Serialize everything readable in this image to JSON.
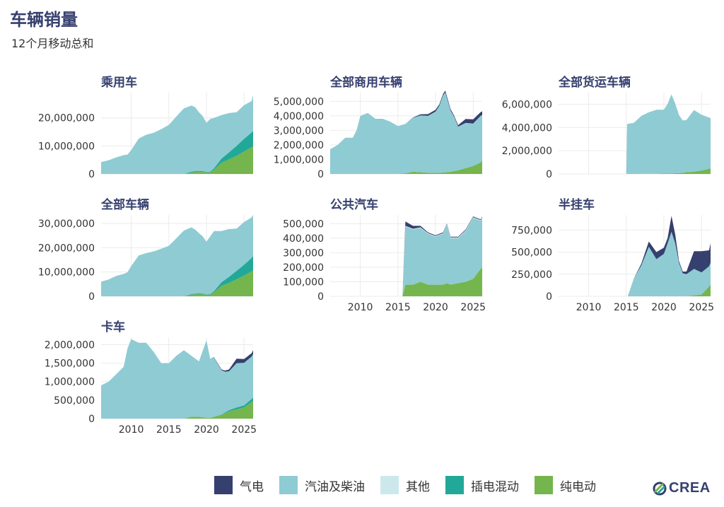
{
  "title": "车辆销量",
  "subtitle": "12个月移动总和",
  "legend": [
    {
      "name": "气电",
      "color": "#35406e"
    },
    {
      "name": "汽油及柴油",
      "color": "#8fcbd3"
    },
    {
      "name": "其他",
      "color": "#cde8ec"
    },
    {
      "name": "插电混动",
      "color": "#22a899"
    },
    {
      "name": "纯电动",
      "color": "#75b54d"
    }
  ],
  "brand": {
    "name": "CREA"
  },
  "chart_data": [
    {
      "type": "area",
      "title": "乘用车",
      "x_ticks": [
        2010,
        2015,
        2020,
        2025
      ],
      "show_x_ticks": false,
      "xlim": [
        2006,
        2026.2
      ],
      "ylim": [
        0,
        29000000
      ],
      "y_ticks": [
        0,
        10000000,
        20000000
      ],
      "y_tick_labels": [
        "0",
        "10,000,000",
        "20,000,000"
      ],
      "x": [
        2006,
        2007,
        2008,
        2009,
        2009.5,
        2010,
        2011,
        2012,
        2013,
        2014,
        2015,
        2016,
        2017,
        2018,
        2018.5,
        2019,
        2019.5,
        2020,
        2020.5,
        2021,
        2022,
        2023,
        2024,
        2025,
        2026,
        2026.2
      ],
      "series": [
        {
          "name": "纯电动",
          "values": [
            0,
            0,
            0,
            0,
            0,
            0,
            0,
            0,
            0,
            0,
            0,
            0,
            0,
            500000,
            700000,
            800000,
            700000,
            500000,
            600000,
            1500000,
            4000000,
            5200000,
            6500000,
            8000000,
            9500000,
            9800000
          ]
        },
        {
          "name": "插电混动",
          "values": [
            0,
            0,
            0,
            0,
            0,
            0,
            0,
            0,
            0,
            0,
            0,
            0,
            0,
            300000,
            300000,
            300000,
            300000,
            200000,
            200000,
            500000,
            1500000,
            2500000,
            3500000,
            4500000,
            5300000,
            5600000
          ]
        },
        {
          "name": "汽油及柴油",
          "values": [
            4200000,
            4900000,
            5900000,
            6700000,
            6900000,
            8500000,
            12600000,
            14000000,
            14700000,
            16000000,
            17500000,
            20500000,
            23400000,
            23600000,
            22800000,
            20900000,
            19600000,
            17500000,
            18800000,
            18000000,
            15500000,
            14000000,
            12000000,
            12000000,
            11200000,
            12800000
          ]
        }
      ]
    },
    {
      "type": "area",
      "title": "全部商用车辆",
      "x_ticks": [
        2010,
        2015,
        2020,
        2025
      ],
      "show_x_ticks": false,
      "xlim": [
        2006,
        2026.2
      ],
      "ylim": [
        0,
        5600000
      ],
      "y_ticks": [
        0,
        1000000,
        2000000,
        3000000,
        4000000,
        5000000
      ],
      "y_tick_labels": [
        "0",
        "1,000,000",
        "2,000,000",
        "3,000,000",
        "4,000,000",
        "5,000,000"
      ],
      "x": [
        2006,
        2007,
        2008,
        2009,
        2009.5,
        2010,
        2011,
        2012,
        2013,
        2014,
        2015,
        2016,
        2017,
        2018,
        2019,
        2020,
        2020.5,
        2021,
        2021.3,
        2022,
        2022.5,
        2023,
        2024,
        2025,
        2026,
        2026.2
      ],
      "series": [
        {
          "name": "纯电动",
          "values": [
            0,
            0,
            0,
            0,
            0,
            0,
            0,
            0,
            0,
            0,
            0,
            50000,
            150000,
            120000,
            90000,
            80000,
            80000,
            100000,
            110000,
            150000,
            200000,
            250000,
            400000,
            550000,
            800000,
            950000
          ]
        },
        {
          "name": "汽油及柴油",
          "values": [
            1700000,
            2000000,
            2500000,
            2500000,
            3000000,
            4000000,
            4200000,
            3800000,
            3800000,
            3600000,
            3300000,
            3400000,
            3700000,
            3900000,
            3900000,
            4200000,
            4600000,
            5300000,
            5500000,
            4200000,
            3700000,
            3000000,
            3100000,
            2900000,
            3200000,
            3100000
          ]
        },
        {
          "name": "其他",
          "values": [
            0,
            0,
            0,
            0,
            0,
            0,
            0,
            0,
            0,
            0,
            0,
            0,
            10000,
            10000,
            10000,
            10000,
            10000,
            10000,
            10000,
            10000,
            10000,
            10000,
            10000,
            10000,
            10000,
            10000
          ]
        },
        {
          "name": "气电",
          "values": [
            0,
            0,
            0,
            0,
            0,
            0,
            0,
            0,
            0,
            0,
            0,
            0,
            20000,
            80000,
            120000,
            130000,
            100000,
            100000,
            120000,
            100000,
            80000,
            100000,
            280000,
            300000,
            250000,
            250000
          ]
        }
      ]
    },
    {
      "type": "area",
      "title": "全部货运车辆",
      "x_ticks": [
        2010,
        2015,
        2020,
        2025
      ],
      "show_x_ticks": false,
      "xlim": [
        2006,
        2026.2
      ],
      "ylim": [
        0,
        7000000
      ],
      "y_ticks": [
        0,
        2000000,
        4000000,
        6000000
      ],
      "y_tick_labels": [
        "0",
        "2,000,000",
        "4,000,000",
        "6,000,000"
      ],
      "x": [
        2015,
        2015.1,
        2016,
        2017,
        2018,
        2019,
        2020,
        2020.5,
        2021,
        2021.5,
        2022,
        2022.5,
        2023,
        2024,
        2025,
        2026,
        2026.2
      ],
      "series": [
        {
          "name": "纯电动",
          "values": [
            0,
            0,
            0,
            0,
            10000,
            20000,
            30000,
            40000,
            50000,
            60000,
            80000,
            100000,
            150000,
            200000,
            300000,
            450000,
            500000
          ]
        },
        {
          "name": "汽油及柴油",
          "values": [
            0,
            4300000,
            4400000,
            5000000,
            5300000,
            5500000,
            5500000,
            6000000,
            6800000,
            6000000,
            5000000,
            4500000,
            4500000,
            5300000,
            4800000,
            4400000,
            4300000
          ]
        }
      ]
    },
    {
      "type": "area",
      "title": "全部车辆",
      "x_ticks": [
        2010,
        2015,
        2020,
        2025
      ],
      "show_x_ticks": false,
      "xlim": [
        2006,
        2026.2
      ],
      "ylim": [
        0,
        33500000
      ],
      "y_ticks": [
        0,
        10000000,
        20000000,
        30000000
      ],
      "y_tick_labels": [
        "0",
        "10,000,000",
        "20,000,000",
        "30,000,000"
      ],
      "x": [
        2006,
        2007,
        2008,
        2009,
        2009.5,
        2010,
        2011,
        2012,
        2013,
        2014,
        2015,
        2016,
        2017,
        2018,
        2018.5,
        2019,
        2019.5,
        2020,
        2020.5,
        2021,
        2022,
        2023,
        2024,
        2025,
        2026,
        2026.2
      ],
      "series": [
        {
          "name": "纯电动",
          "values": [
            0,
            0,
            0,
            0,
            0,
            0,
            0,
            0,
            0,
            0,
            0,
            0,
            0,
            600000,
            800000,
            900000,
            800000,
            600000,
            700000,
            1600000,
            4300000,
            5500000,
            7000000,
            8500000,
            10300000,
            10800000
          ]
        },
        {
          "name": "插电混动",
          "values": [
            0,
            0,
            0,
            0,
            0,
            0,
            0,
            0,
            0,
            0,
            0,
            0,
            0,
            300000,
            300000,
            300000,
            300000,
            200000,
            200000,
            500000,
            1500000,
            2500000,
            3500000,
            4500000,
            5500000,
            5800000
          ]
        },
        {
          "name": "汽油及柴油",
          "values": [
            6000000,
            6900000,
            8400000,
            9200000,
            9900000,
            12500000,
            16800000,
            17800000,
            18500000,
            19600000,
            20800000,
            23900000,
            27100000,
            27500000,
            26400000,
            24800000,
            23600000,
            21700000,
            23800000,
            24800000,
            21100000,
            19700000,
            17400000,
            17600000,
            16700000,
            17000000
          ]
        }
      ]
    },
    {
      "type": "area",
      "title": "公共汽车",
      "x_ticks": [
        2010,
        2015,
        2020,
        2025
      ],
      "show_x_ticks": true,
      "xlim": [
        2006,
        2026.2
      ],
      "ylim": [
        0,
        560000
      ],
      "y_ticks": [
        0,
        100000,
        200000,
        300000,
        400000,
        500000
      ],
      "y_tick_labels": [
        "0",
        "100,000",
        "200,000",
        "300,000",
        "400,000",
        "500,000"
      ],
      "x": [
        2015,
        2015.6,
        2016,
        2017,
        2018,
        2019,
        2020,
        2021,
        2021.5,
        2022,
        2023,
        2024,
        2025,
        2026,
        2026.2
      ],
      "series": [
        {
          "name": "纯电动",
          "values": [
            0,
            0,
            80000,
            80000,
            100000,
            80000,
            80000,
            80000,
            90000,
            80000,
            90000,
            100000,
            120000,
            190000,
            200000
          ]
        },
        {
          "name": "汽油及柴油",
          "values": [
            0,
            0,
            400000,
            380000,
            370000,
            350000,
            330000,
            350000,
            400000,
            320000,
            310000,
            350000,
            420000,
            330000,
            340000
          ]
        },
        {
          "name": "其他",
          "values": [
            0,
            0,
            5000,
            5000,
            5000,
            5000,
            5000,
            5000,
            5000,
            5000,
            5000,
            5000,
            5000,
            5000,
            5000
          ]
        },
        {
          "name": "气电",
          "values": [
            0,
            0,
            30000,
            20000,
            10000,
            5000,
            5000,
            5000,
            5000,
            5000,
            5000,
            5000,
            5000,
            5000,
            5000
          ]
        }
      ]
    },
    {
      "type": "area",
      "title": "半挂车",
      "x_ticks": [
        2010,
        2015,
        2020,
        2025
      ],
      "show_x_ticks": true,
      "xlim": [
        2006,
        2026.2
      ],
      "ylim": [
        0,
        920000
      ],
      "y_ticks": [
        0,
        250000,
        500000,
        750000
      ],
      "y_tick_labels": [
        "0",
        "250,000",
        "500,000",
        "750,000"
      ],
      "x": [
        2015,
        2015.2,
        2016,
        2017,
        2018,
        2019,
        2020,
        2020.5,
        2021,
        2021.5,
        2022,
        2022.5,
        2023,
        2024,
        2025,
        2026,
        2026.2
      ],
      "series": [
        {
          "name": "纯电动",
          "values": [
            0,
            0,
            0,
            0,
            0,
            0,
            0,
            0,
            0,
            0,
            0,
            0,
            0,
            10000,
            20000,
            110000,
            140000
          ]
        },
        {
          "name": "汽油及柴油",
          "values": [
            0,
            0,
            200000,
            350000,
            560000,
            420000,
            480000,
            600000,
            730000,
            600000,
            380000,
            260000,
            250000,
            300000,
            250000,
            230000,
            240000
          ]
        },
        {
          "name": "气电",
          "values": [
            0,
            0,
            0,
            20000,
            60000,
            80000,
            70000,
            60000,
            180000,
            100000,
            20000,
            20000,
            30000,
            200000,
            240000,
            180000,
            220000
          ]
        }
      ]
    },
    {
      "type": "area",
      "title": "卡车",
      "x_ticks": [
        2010,
        2015,
        2020,
        2025
      ],
      "show_x_ticks": true,
      "xlim": [
        2006,
        2026.2
      ],
      "ylim": [
        0,
        2200000
      ],
      "y_ticks": [
        0,
        500000,
        1000000,
        1500000,
        2000000
      ],
      "y_tick_labels": [
        "0",
        "500,000",
        "1,000,000",
        "1,500,000",
        "2,000,000"
      ],
      "x": [
        2006,
        2007,
        2008,
        2009,
        2009.5,
        2010,
        2011,
        2012,
        2013,
        2014,
        2015,
        2016,
        2017,
        2018,
        2019,
        2020,
        2020.5,
        2021,
        2022,
        2022.5,
        2023,
        2024,
        2025,
        2026,
        2026.2
      ],
      "series": [
        {
          "name": "纯电动",
          "values": [
            0,
            0,
            0,
            0,
            0,
            0,
            0,
            0,
            0,
            0,
            0,
            0,
            0,
            50000,
            50000,
            20000,
            20000,
            50000,
            100000,
            150000,
            200000,
            250000,
            300000,
            450000,
            480000
          ]
        },
        {
          "name": "插电混动",
          "values": [
            0,
            0,
            0,
            0,
            0,
            0,
            0,
            0,
            0,
            0,
            0,
            0,
            0,
            0,
            0,
            0,
            0,
            0,
            10000,
            20000,
            30000,
            50000,
            60000,
            80000,
            90000
          ]
        },
        {
          "name": "汽油及柴油",
          "values": [
            900000,
            1000000,
            1200000,
            1400000,
            1900000,
            2150000,
            2050000,
            2050000,
            1800000,
            1500000,
            1500000,
            1700000,
            1850000,
            1650000,
            1500000,
            2100000,
            1600000,
            1600000,
            1200000,
            1100000,
            1050000,
            1200000,
            1150000,
            1150000,
            1180000
          ]
        },
        {
          "name": "气电",
          "values": [
            0,
            0,
            0,
            0,
            0,
            0,
            0,
            0,
            0,
            0,
            0,
            0,
            0,
            0,
            0,
            0,
            0,
            10000,
            20000,
            30000,
            50000,
            120000,
            100000,
            90000,
            100000
          ]
        }
      ]
    }
  ]
}
